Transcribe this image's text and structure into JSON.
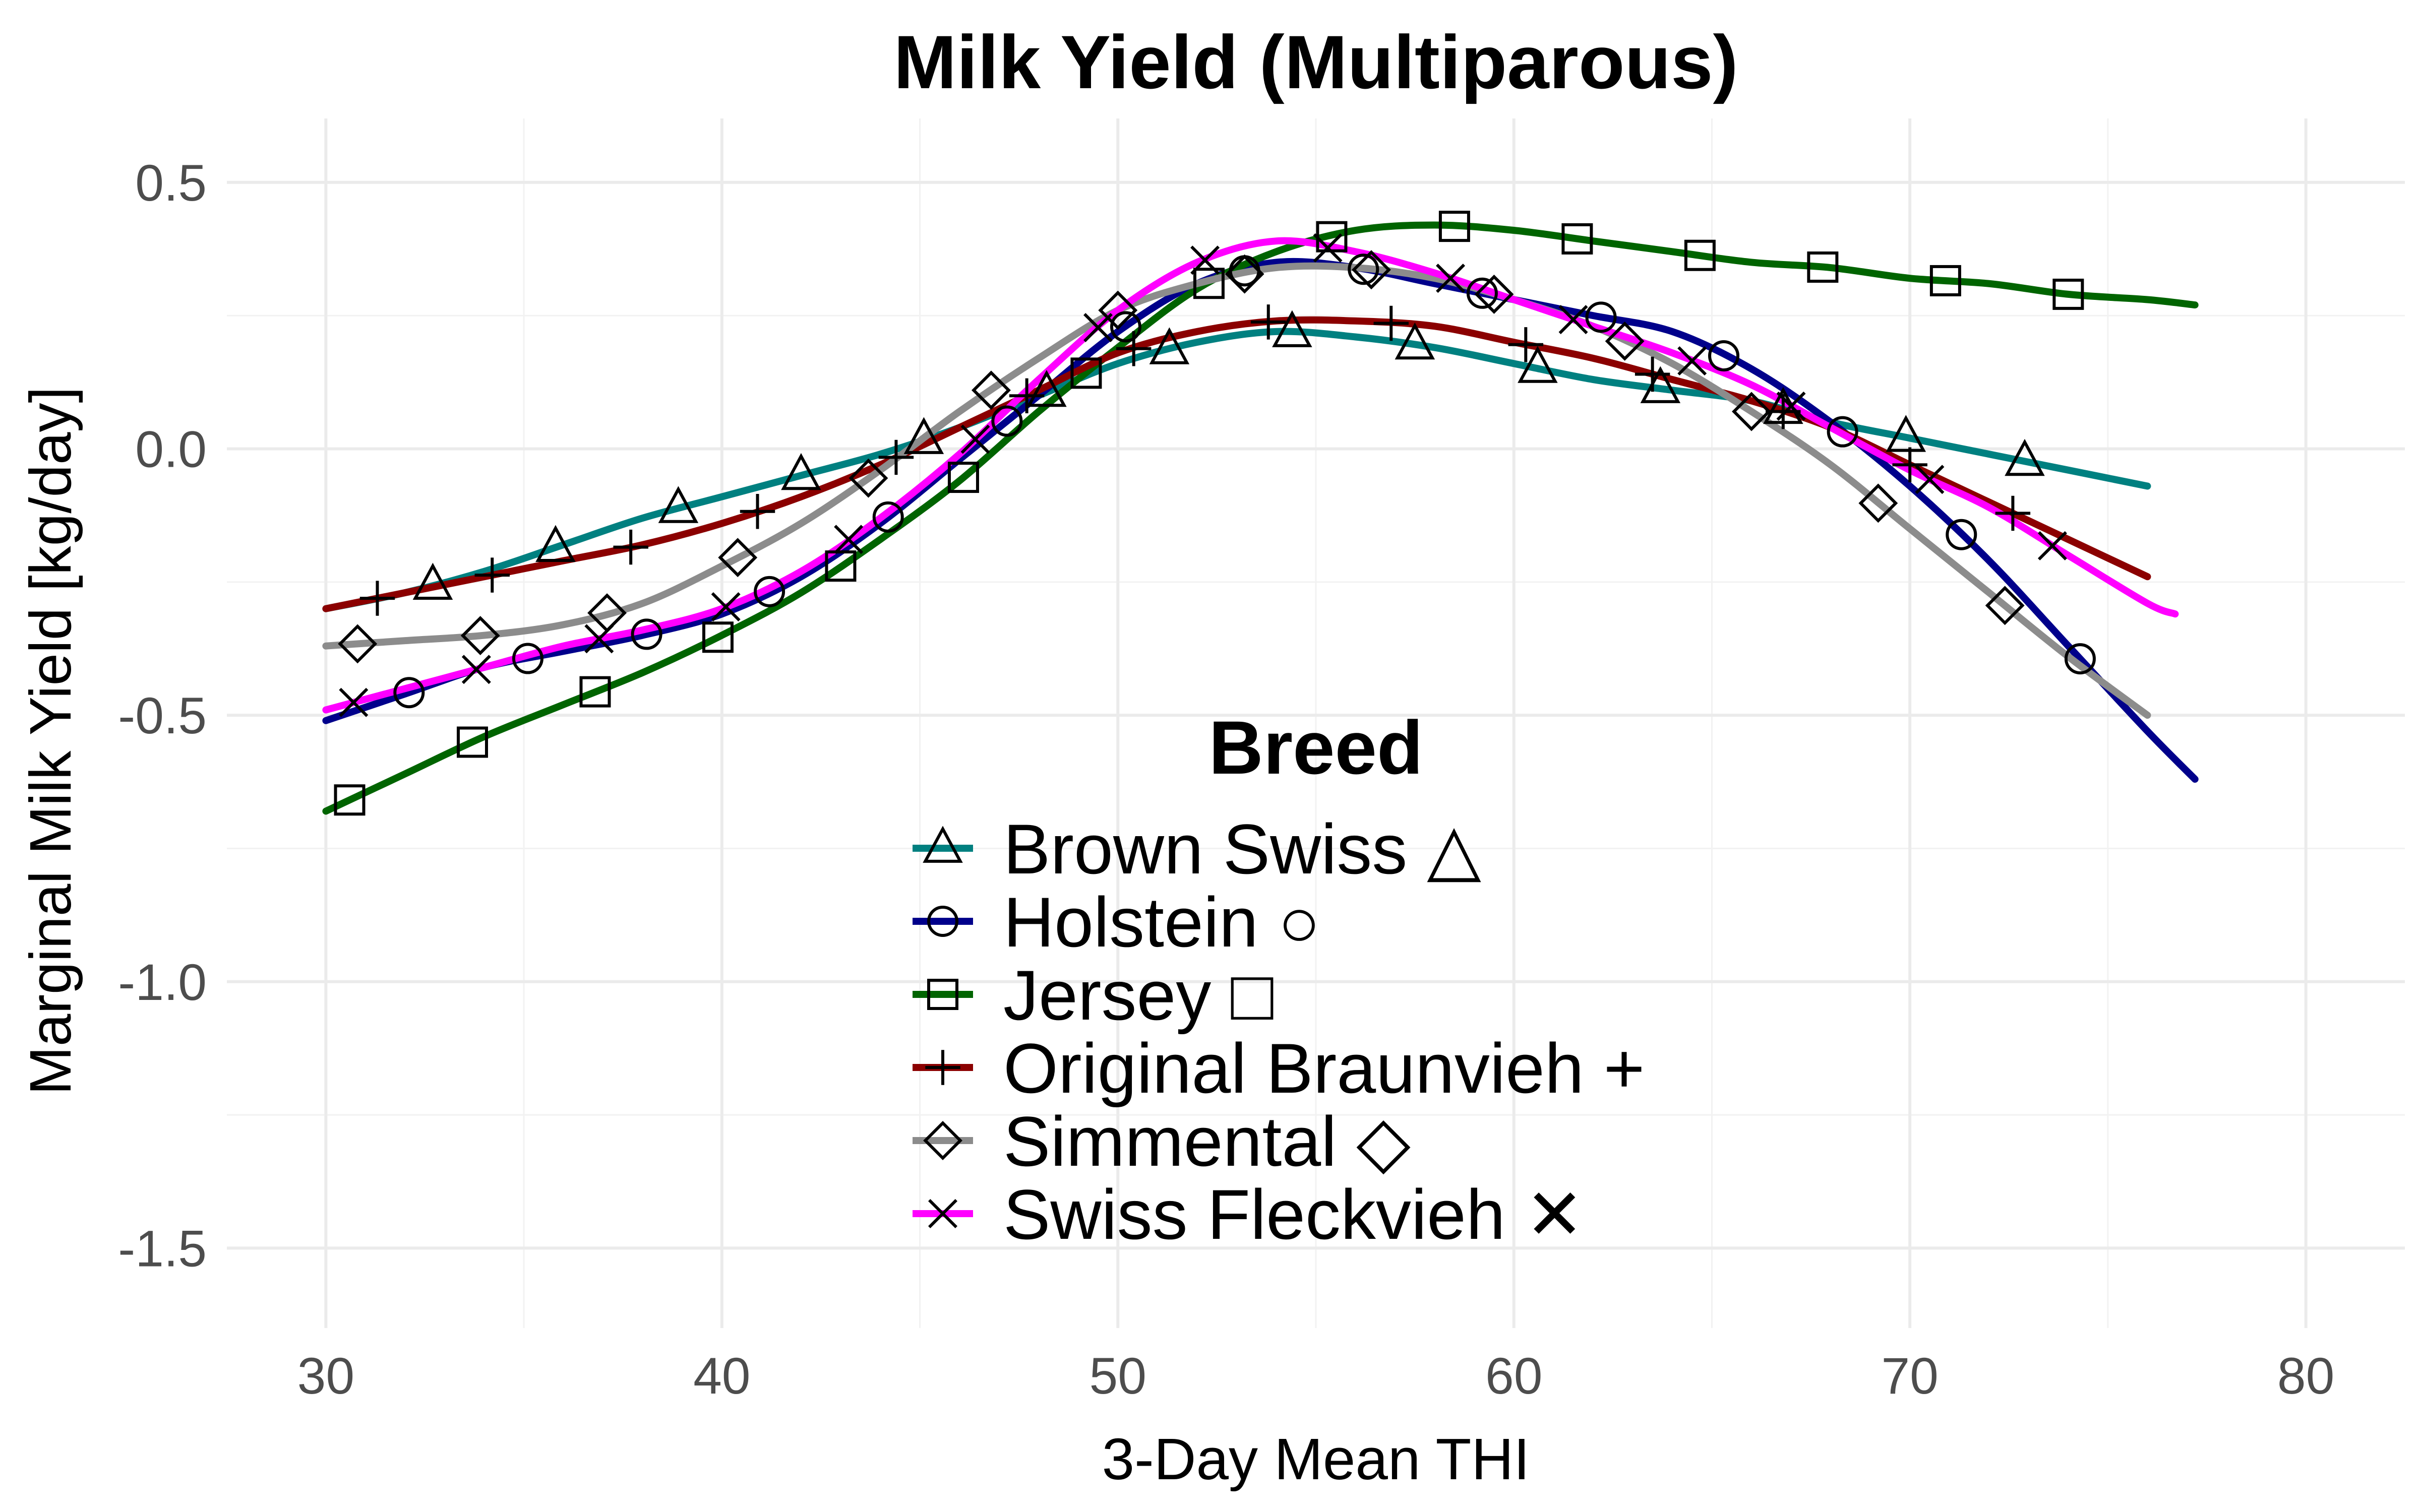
{
  "chart_data": {
    "type": "line",
    "title": "Milk Yield (Multiparous)",
    "xlabel": "3-Day Mean THI",
    "ylabel": "Marginal Milk Yield [kg/day]",
    "xlim": [
      27.5,
      82.5
    ],
    "ylim": [
      -1.65,
      0.62
    ],
    "x_ticks": [
      30,
      40,
      50,
      60,
      70,
      80
    ],
    "x_tick_labels": [
      "30",
      "40",
      "50",
      "60",
      "70",
      "80"
    ],
    "y_ticks": [
      -1.5,
      -1.0,
      -0.5,
      0.0,
      0.5
    ],
    "y_tick_labels": [
      "-1.5",
      "-1.0",
      "-0.5",
      "0.0",
      "0.5"
    ],
    "grid": true,
    "legend_title": "Breed",
    "legend_position": "center",
    "series": [
      {
        "name": "Brown Swiss △",
        "color": "#008080",
        "marker": "triangle",
        "points": [
          [
            30,
            -0.3
          ],
          [
            32,
            -0.27
          ],
          [
            34,
            -0.23
          ],
          [
            36,
            -0.18
          ],
          [
            38,
            -0.13
          ],
          [
            40,
            -0.09
          ],
          [
            42,
            -0.05
          ],
          [
            44,
            -0.01
          ],
          [
            46,
            0.04
          ],
          [
            48,
            0.1
          ],
          [
            50,
            0.16
          ],
          [
            52,
            0.2
          ],
          [
            54,
            0.22
          ],
          [
            56,
            0.21
          ],
          [
            58,
            0.19
          ],
          [
            60,
            0.16
          ],
          [
            62,
            0.13
          ],
          [
            64,
            0.11
          ],
          [
            66,
            0.09
          ],
          [
            68,
            0.05
          ],
          [
            70,
            0.02
          ],
          [
            72,
            -0.01
          ],
          [
            74,
            -0.04
          ],
          [
            76,
            -0.07
          ]
        ],
        "marker_x": [
          32.7,
          35.8,
          38.9,
          42.0,
          45.1,
          48.2,
          51.3,
          54.4,
          57.5,
          60.6,
          63.7,
          66.8,
          69.9,
          72.9
        ]
      },
      {
        "name": "Holstein ○",
        "color": "#00008B",
        "marker": "circle",
        "points": [
          [
            30,
            -0.51
          ],
          [
            32,
            -0.46
          ],
          [
            34,
            -0.41
          ],
          [
            36,
            -0.38
          ],
          [
            38,
            -0.35
          ],
          [
            40,
            -0.31
          ],
          [
            42,
            -0.24
          ],
          [
            44,
            -0.14
          ],
          [
            46,
            -0.02
          ],
          [
            48,
            0.1
          ],
          [
            50,
            0.22
          ],
          [
            52,
            0.31
          ],
          [
            54,
            0.35
          ],
          [
            56,
            0.34
          ],
          [
            58,
            0.31
          ],
          [
            60,
            0.28
          ],
          [
            62,
            0.25
          ],
          [
            64,
            0.22
          ],
          [
            66,
            0.15
          ],
          [
            68,
            0.05
          ],
          [
            70,
            -0.07
          ],
          [
            72,
            -0.21
          ],
          [
            74,
            -0.37
          ],
          [
            76,
            -0.53
          ],
          [
            77.2,
            -0.62
          ]
        ],
        "marker_x": [
          32.1,
          35.1,
          38.1,
          41.2,
          44.2,
          47.2,
          50.2,
          53.2,
          56.2,
          59.2,
          62.2,
          65.3,
          68.3,
          71.3,
          74.3
        ]
      },
      {
        "name": "Jersey □",
        "color": "#006400",
        "marker": "square",
        "points": [
          [
            30,
            -0.68
          ],
          [
            32,
            -0.61
          ],
          [
            34,
            -0.54
          ],
          [
            36,
            -0.48
          ],
          [
            38,
            -0.42
          ],
          [
            40,
            -0.35
          ],
          [
            42,
            -0.27
          ],
          [
            44,
            -0.17
          ],
          [
            46,
            -0.06
          ],
          [
            48,
            0.07
          ],
          [
            50,
            0.19
          ],
          [
            52,
            0.3
          ],
          [
            54,
            0.37
          ],
          [
            56,
            0.41
          ],
          [
            58,
            0.42
          ],
          [
            60,
            0.41
          ],
          [
            62,
            0.39
          ],
          [
            64,
            0.37
          ],
          [
            66,
            0.35
          ],
          [
            68,
            0.34
          ],
          [
            70,
            0.32
          ],
          [
            72,
            0.31
          ],
          [
            74,
            0.29
          ],
          [
            76,
            0.28
          ],
          [
            77.2,
            0.27
          ]
        ],
        "marker_x": [
          30.6,
          33.7,
          36.8,
          39.9,
          43.0,
          46.1,
          49.2,
          52.3,
          55.4,
          58.5,
          61.6,
          64.7,
          67.8,
          70.9,
          74.0
        ]
      },
      {
        "name": "Original Braunvieh +",
        "color": "#8B0000",
        "marker": "plus",
        "points": [
          [
            30,
            -0.3
          ],
          [
            32,
            -0.27
          ],
          [
            34,
            -0.24
          ],
          [
            36,
            -0.21
          ],
          [
            38,
            -0.18
          ],
          [
            40,
            -0.14
          ],
          [
            42,
            -0.09
          ],
          [
            44,
            -0.03
          ],
          [
            46,
            0.04
          ],
          [
            48,
            0.11
          ],
          [
            50,
            0.18
          ],
          [
            52,
            0.22
          ],
          [
            54,
            0.24
          ],
          [
            56,
            0.24
          ],
          [
            58,
            0.23
          ],
          [
            60,
            0.2
          ],
          [
            62,
            0.17
          ],
          [
            64,
            0.13
          ],
          [
            66,
            0.09
          ],
          [
            68,
            0.04
          ],
          [
            70,
            -0.03
          ],
          [
            72,
            -0.1
          ],
          [
            74,
            -0.17
          ],
          [
            76,
            -0.24
          ]
        ],
        "marker_x": [
          31.3,
          34.2,
          37.7,
          40.9,
          44.4,
          47.7,
          50.4,
          53.8,
          56.9,
          60.3,
          63.5,
          66.8,
          70.0,
          72.6
        ]
      },
      {
        "name": "Simmental ◇",
        "color": "#8C8C8C",
        "marker": "diamond",
        "points": [
          [
            30,
            -0.37
          ],
          [
            32,
            -0.36
          ],
          [
            34,
            -0.35
          ],
          [
            36,
            -0.33
          ],
          [
            38,
            -0.29
          ],
          [
            40,
            -0.22
          ],
          [
            42,
            -0.14
          ],
          [
            44,
            -0.04
          ],
          [
            46,
            0.07
          ],
          [
            48,
            0.17
          ],
          [
            50,
            0.26
          ],
          [
            52,
            0.31
          ],
          [
            54,
            0.34
          ],
          [
            56,
            0.34
          ],
          [
            58,
            0.32
          ],
          [
            60,
            0.28
          ],
          [
            62,
            0.23
          ],
          [
            64,
            0.16
          ],
          [
            66,
            0.07
          ],
          [
            68,
            -0.03
          ],
          [
            70,
            -0.15
          ],
          [
            72,
            -0.27
          ],
          [
            74,
            -0.39
          ],
          [
            76,
            -0.5
          ]
        ],
        "marker_x": [
          30.8,
          33.9,
          37.1,
          40.4,
          43.7,
          46.8,
          50.0,
          53.2,
          56.4,
          59.5,
          62.8,
          66.0,
          69.2,
          72.4
        ]
      },
      {
        "name": "Swiss Fleckvieh ✕",
        "color": "#FF00FF",
        "marker": "cross",
        "points": [
          [
            30,
            -0.49
          ],
          [
            32,
            -0.45
          ],
          [
            34,
            -0.41
          ],
          [
            36,
            -0.37
          ],
          [
            38,
            -0.34
          ],
          [
            40,
            -0.3
          ],
          [
            42,
            -0.23
          ],
          [
            44,
            -0.13
          ],
          [
            46,
            -0.01
          ],
          [
            48,
            0.13
          ],
          [
            50,
            0.26
          ],
          [
            52,
            0.35
          ],
          [
            54,
            0.39
          ],
          [
            56,
            0.37
          ],
          [
            58,
            0.33
          ],
          [
            60,
            0.28
          ],
          [
            62,
            0.23
          ],
          [
            64,
            0.18
          ],
          [
            66,
            0.12
          ],
          [
            68,
            0.04
          ],
          [
            70,
            -0.04
          ],
          [
            72,
            -0.11
          ],
          [
            74,
            -0.2
          ],
          [
            76,
            -0.29
          ],
          [
            76.7,
            -0.31
          ]
        ],
        "marker_x": [
          30.7,
          33.8,
          36.9,
          40.1,
          43.2,
          46.4,
          49.5,
          52.2,
          55.3,
          58.4,
          61.5,
          64.5,
          67.0,
          70.5,
          73.6
        ]
      }
    ]
  }
}
